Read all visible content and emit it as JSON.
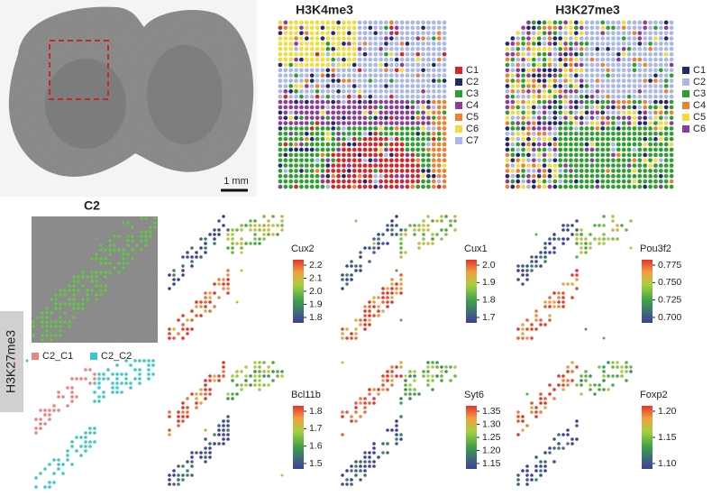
{
  "tissue": {
    "scale_label": "1 mm"
  },
  "cluster_maps": [
    {
      "title": "H3K4me3",
      "legend": [
        {
          "label": "C1",
          "color": "#d62728"
        },
        {
          "label": "C2",
          "color": "#1f2a6b"
        },
        {
          "label": "C3",
          "color": "#2ca02c"
        },
        {
          "label": "C4",
          "color": "#8e3b9e"
        },
        {
          "label": "C5",
          "color": "#f08030"
        },
        {
          "label": "C6",
          "color": "#f2dc3c"
        },
        {
          "label": "C7",
          "color": "#a9b8e8"
        }
      ]
    },
    {
      "title": "H3K27me3",
      "legend": [
        {
          "label": "C1",
          "color": "#1f2a6b"
        },
        {
          "label": "C2",
          "color": "#a9b8e8"
        },
        {
          "label": "C3",
          "color": "#2ca02c"
        },
        {
          "label": "C4",
          "color": "#f08030"
        },
        {
          "label": "C5",
          "color": "#f2dc3c"
        },
        {
          "label": "C6",
          "color": "#8e3b9e"
        }
      ]
    }
  ],
  "side_label": "H3K27me3",
  "c2": {
    "title": "C2",
    "legend": [
      {
        "label": "C2_C1",
        "color": "#f08080"
      },
      {
        "label": "C2_C2",
        "color": "#3cc8c8"
      }
    ]
  },
  "gene_panels": [
    {
      "gene": "Cux2",
      "ticks": [
        "2.2",
        "2.1",
        "2.0",
        "1.9",
        "1.8"
      ]
    },
    {
      "gene": "Cux1",
      "ticks": [
        "2.0",
        "1.9",
        "1.8",
        "1.7"
      ]
    },
    {
      "gene": "Pou3f2",
      "ticks": [
        "0.775",
        "0.750",
        "0.725",
        "0.700"
      ]
    },
    {
      "gene": "Bcl11b",
      "ticks": [
        "1.8",
        "1.7",
        "1.6",
        "1.5"
      ]
    },
    {
      "gene": "Syt6",
      "ticks": [
        "1.35",
        "1.30",
        "1.25",
        "1.20",
        "1.15"
      ]
    },
    {
      "gene": "Foxp2",
      "ticks": [
        "1.20",
        "1.15",
        "1.10"
      ]
    }
  ]
}
